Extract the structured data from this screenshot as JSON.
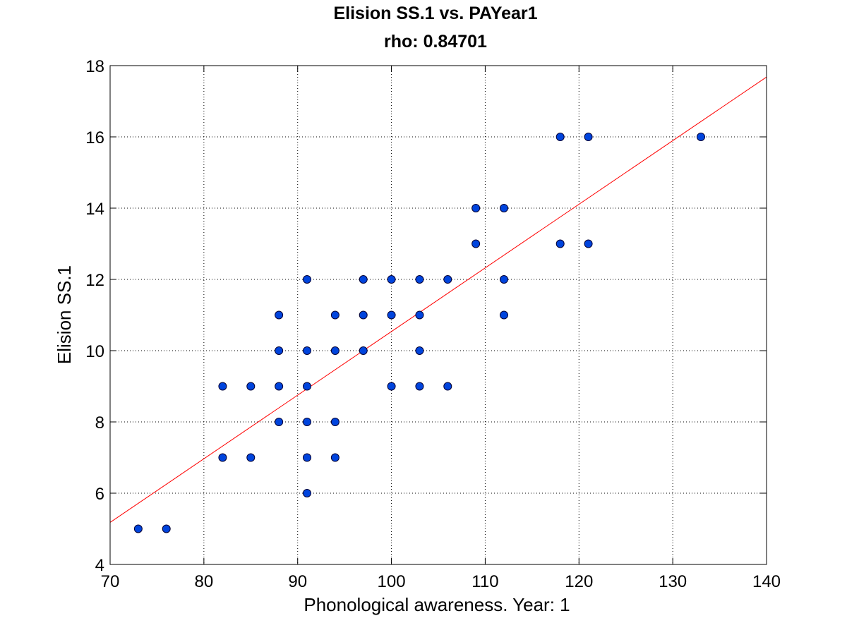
{
  "chart_data": {
    "type": "scatter",
    "title": "Elision SS.1 vs. PAYear1",
    "subtitle": "rho: 0.84701",
    "xlabel": "Phonological awareness. Year: 1",
    "ylabel": "Elision SS.1",
    "xlim": [
      70,
      140
    ],
    "ylim": [
      4,
      18
    ],
    "xticks": [
      "70",
      "80",
      "90",
      "100",
      "110",
      "120",
      "130",
      "140"
    ],
    "yticks": [
      "4",
      "6",
      "8",
      "10",
      "12",
      "14",
      "16",
      "18"
    ],
    "grid": true,
    "points": [
      [
        73,
        5
      ],
      [
        76,
        5
      ],
      [
        82,
        9
      ],
      [
        82,
        7
      ],
      [
        85,
        9
      ],
      [
        85,
        7
      ],
      [
        88,
        11
      ],
      [
        88,
        10
      ],
      [
        88,
        9
      ],
      [
        88,
        8
      ],
      [
        91,
        12
      ],
      [
        91,
        10
      ],
      [
        91,
        9
      ],
      [
        91,
        8
      ],
      [
        91,
        7
      ],
      [
        91,
        6
      ],
      [
        94,
        11
      ],
      [
        94,
        10
      ],
      [
        94,
        8
      ],
      [
        94,
        7
      ],
      [
        97,
        12
      ],
      [
        97,
        11
      ],
      [
        97,
        10
      ],
      [
        100,
        12
      ],
      [
        100,
        11
      ],
      [
        100,
        9
      ],
      [
        103,
        12
      ],
      [
        103,
        11
      ],
      [
        103,
        10
      ],
      [
        103,
        9
      ],
      [
        106,
        12
      ],
      [
        106,
        9
      ],
      [
        109,
        14
      ],
      [
        109,
        13
      ],
      [
        112,
        14
      ],
      [
        112,
        12
      ],
      [
        112,
        11
      ],
      [
        118,
        16
      ],
      [
        118,
        13
      ],
      [
        121,
        16
      ],
      [
        121,
        13
      ],
      [
        133,
        16
      ]
    ],
    "fit_line": {
      "x": [
        70,
        140
      ],
      "y": [
        5.18,
        17.68
      ]
    },
    "colors": {
      "marker_fill": "#0044dd",
      "marker_edge": "#000033",
      "fit_line": "#ff0000",
      "grid": "#000000"
    }
  }
}
